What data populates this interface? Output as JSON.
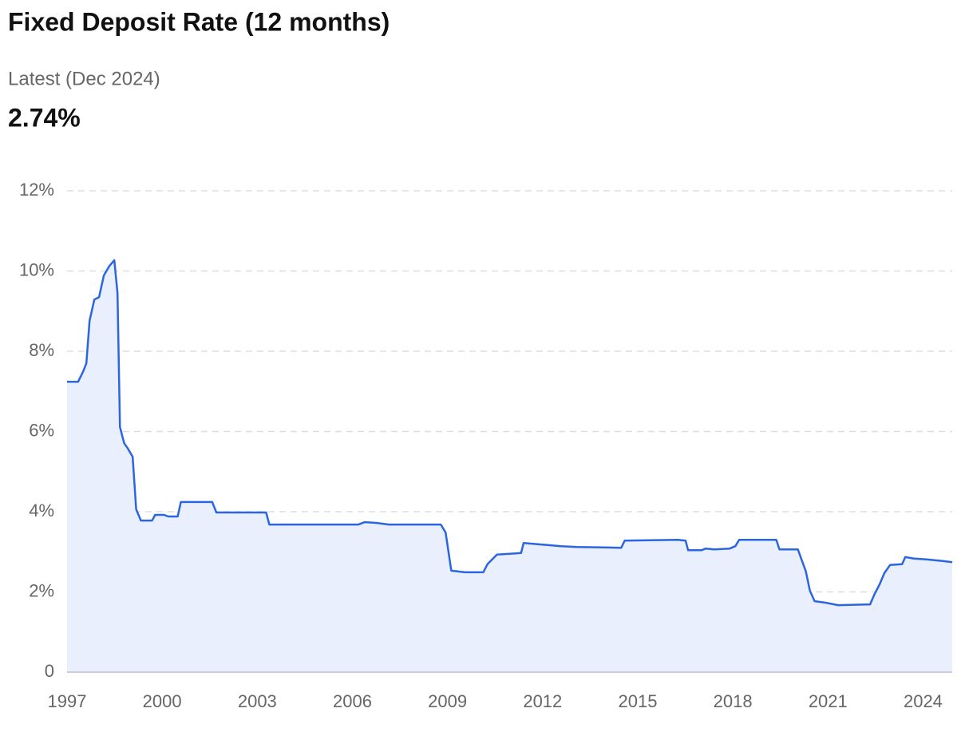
{
  "header": {
    "latest_label": "Latest (Dec 2024)",
    "latest_value": "2.74%"
  },
  "chart_data": {
    "type": "area",
    "title": "Fixed Deposit Rate (12 months)",
    "color": "#2b65e0",
    "fill": "#e9effc",
    "grid": true,
    "x": [
      1997.0,
      1997.35,
      1997.51,
      1997.61,
      1997.71,
      1997.86,
      1998.01,
      1998.16,
      1998.34,
      1998.49,
      1998.59,
      1998.67,
      1998.8,
      1998.92,
      1999.07,
      1999.18,
      1999.33,
      1999.68,
      1999.78,
      2000.06,
      2000.19,
      2000.49,
      2000.59,
      2001.58,
      2001.71,
      2003.28,
      2003.38,
      2006.19,
      2006.39,
      2006.77,
      2007.15,
      2008.79,
      2008.94,
      2009.12,
      2009.55,
      2010.13,
      2010.26,
      2010.56,
      2011.32,
      2011.4,
      2011.7,
      2012.59,
      2013.09,
      2014.48,
      2014.59,
      2016.26,
      2016.51,
      2016.59,
      2017.02,
      2017.14,
      2017.4,
      2017.9,
      2018.08,
      2018.2,
      2019.37,
      2019.47,
      2020.05,
      2020.18,
      2020.3,
      2020.43,
      2020.58,
      2020.94,
      2021.32,
      2022.33,
      2022.46,
      2022.63,
      2022.78,
      2022.96,
      2023.34,
      2023.44,
      2023.72,
      2024.1,
      2024.61,
      2024.92
    ],
    "values": [
      7.24,
      7.24,
      7.5,
      7.7,
      8.76,
      9.29,
      9.35,
      9.89,
      10.13,
      10.27,
      9.45,
      6.11,
      5.71,
      5.57,
      5.37,
      4.06,
      3.78,
      3.78,
      3.92,
      3.92,
      3.88,
      3.88,
      4.24,
      4.24,
      3.98,
      3.98,
      3.68,
      3.68,
      3.74,
      3.72,
      3.68,
      3.68,
      3.48,
      2.53,
      2.49,
      2.49,
      2.69,
      2.93,
      2.97,
      3.22,
      3.2,
      3.14,
      3.12,
      3.1,
      3.28,
      3.3,
      3.28,
      3.04,
      3.04,
      3.08,
      3.06,
      3.08,
      3.14,
      3.3,
      3.3,
      3.06,
      3.06,
      2.78,
      2.52,
      2.03,
      1.77,
      1.73,
      1.67,
      1.69,
      1.93,
      2.19,
      2.47,
      2.67,
      2.69,
      2.87,
      2.83,
      2.81,
      2.77,
      2.74
    ],
    "xlim": [
      1997,
      2024.92
    ],
    "xticks": [
      1997,
      2000,
      2003,
      2006,
      2009,
      2012,
      2015,
      2018,
      2021,
      2024
    ],
    "ylim": [
      0,
      12
    ],
    "yticks": [
      0,
      {
        "value": 2,
        "label": "2%"
      },
      {
        "value": 4,
        "label": "4%"
      },
      {
        "value": 6,
        "label": "6%"
      },
      {
        "value": 8,
        "label": "8%"
      },
      {
        "value": 10,
        "label": "10%"
      },
      {
        "value": 12,
        "label": "12%"
      }
    ]
  }
}
